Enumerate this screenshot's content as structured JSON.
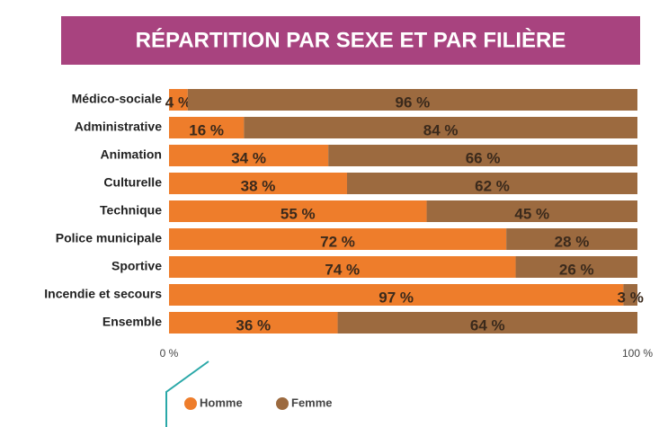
{
  "chart_data": {
    "type": "stacked-barh",
    "title": "RÉPARTITION PAR SEXE ET PAR FILIÈRE",
    "categories": [
      "Médico-sociale",
      "Administrative",
      "Animation",
      "Culturelle",
      "Technique",
      "Police municipale",
      "Sportive",
      "Incendie et secours",
      "Ensemble"
    ],
    "series": [
      {
        "name": "Homme",
        "color": "#ee7d2b",
        "values": [
          4,
          16,
          34,
          38,
          55,
          72,
          74,
          97,
          36
        ],
        "value_labels": [
          "4 %",
          "16 %",
          "34 %",
          "38 %",
          "55 %",
          "72 %",
          "74 %",
          "97 %",
          "36 %"
        ]
      },
      {
        "name": "Femme",
        "color": "#9c6a3f",
        "values": [
          96,
          84,
          66,
          62,
          45,
          28,
          26,
          3,
          64
        ],
        "value_labels": [
          "96 %",
          "84 %",
          "66 %",
          "62 %",
          "45 %",
          "28 %",
          "26 %",
          "3 %",
          "64 %"
        ]
      }
    ],
    "xlim": [
      0,
      100
    ],
    "xticks": [
      {
        "value": 0,
        "label": "0 %"
      },
      {
        "value": 100,
        "label": "100 %"
      }
    ],
    "title_color": "#a8437f"
  }
}
